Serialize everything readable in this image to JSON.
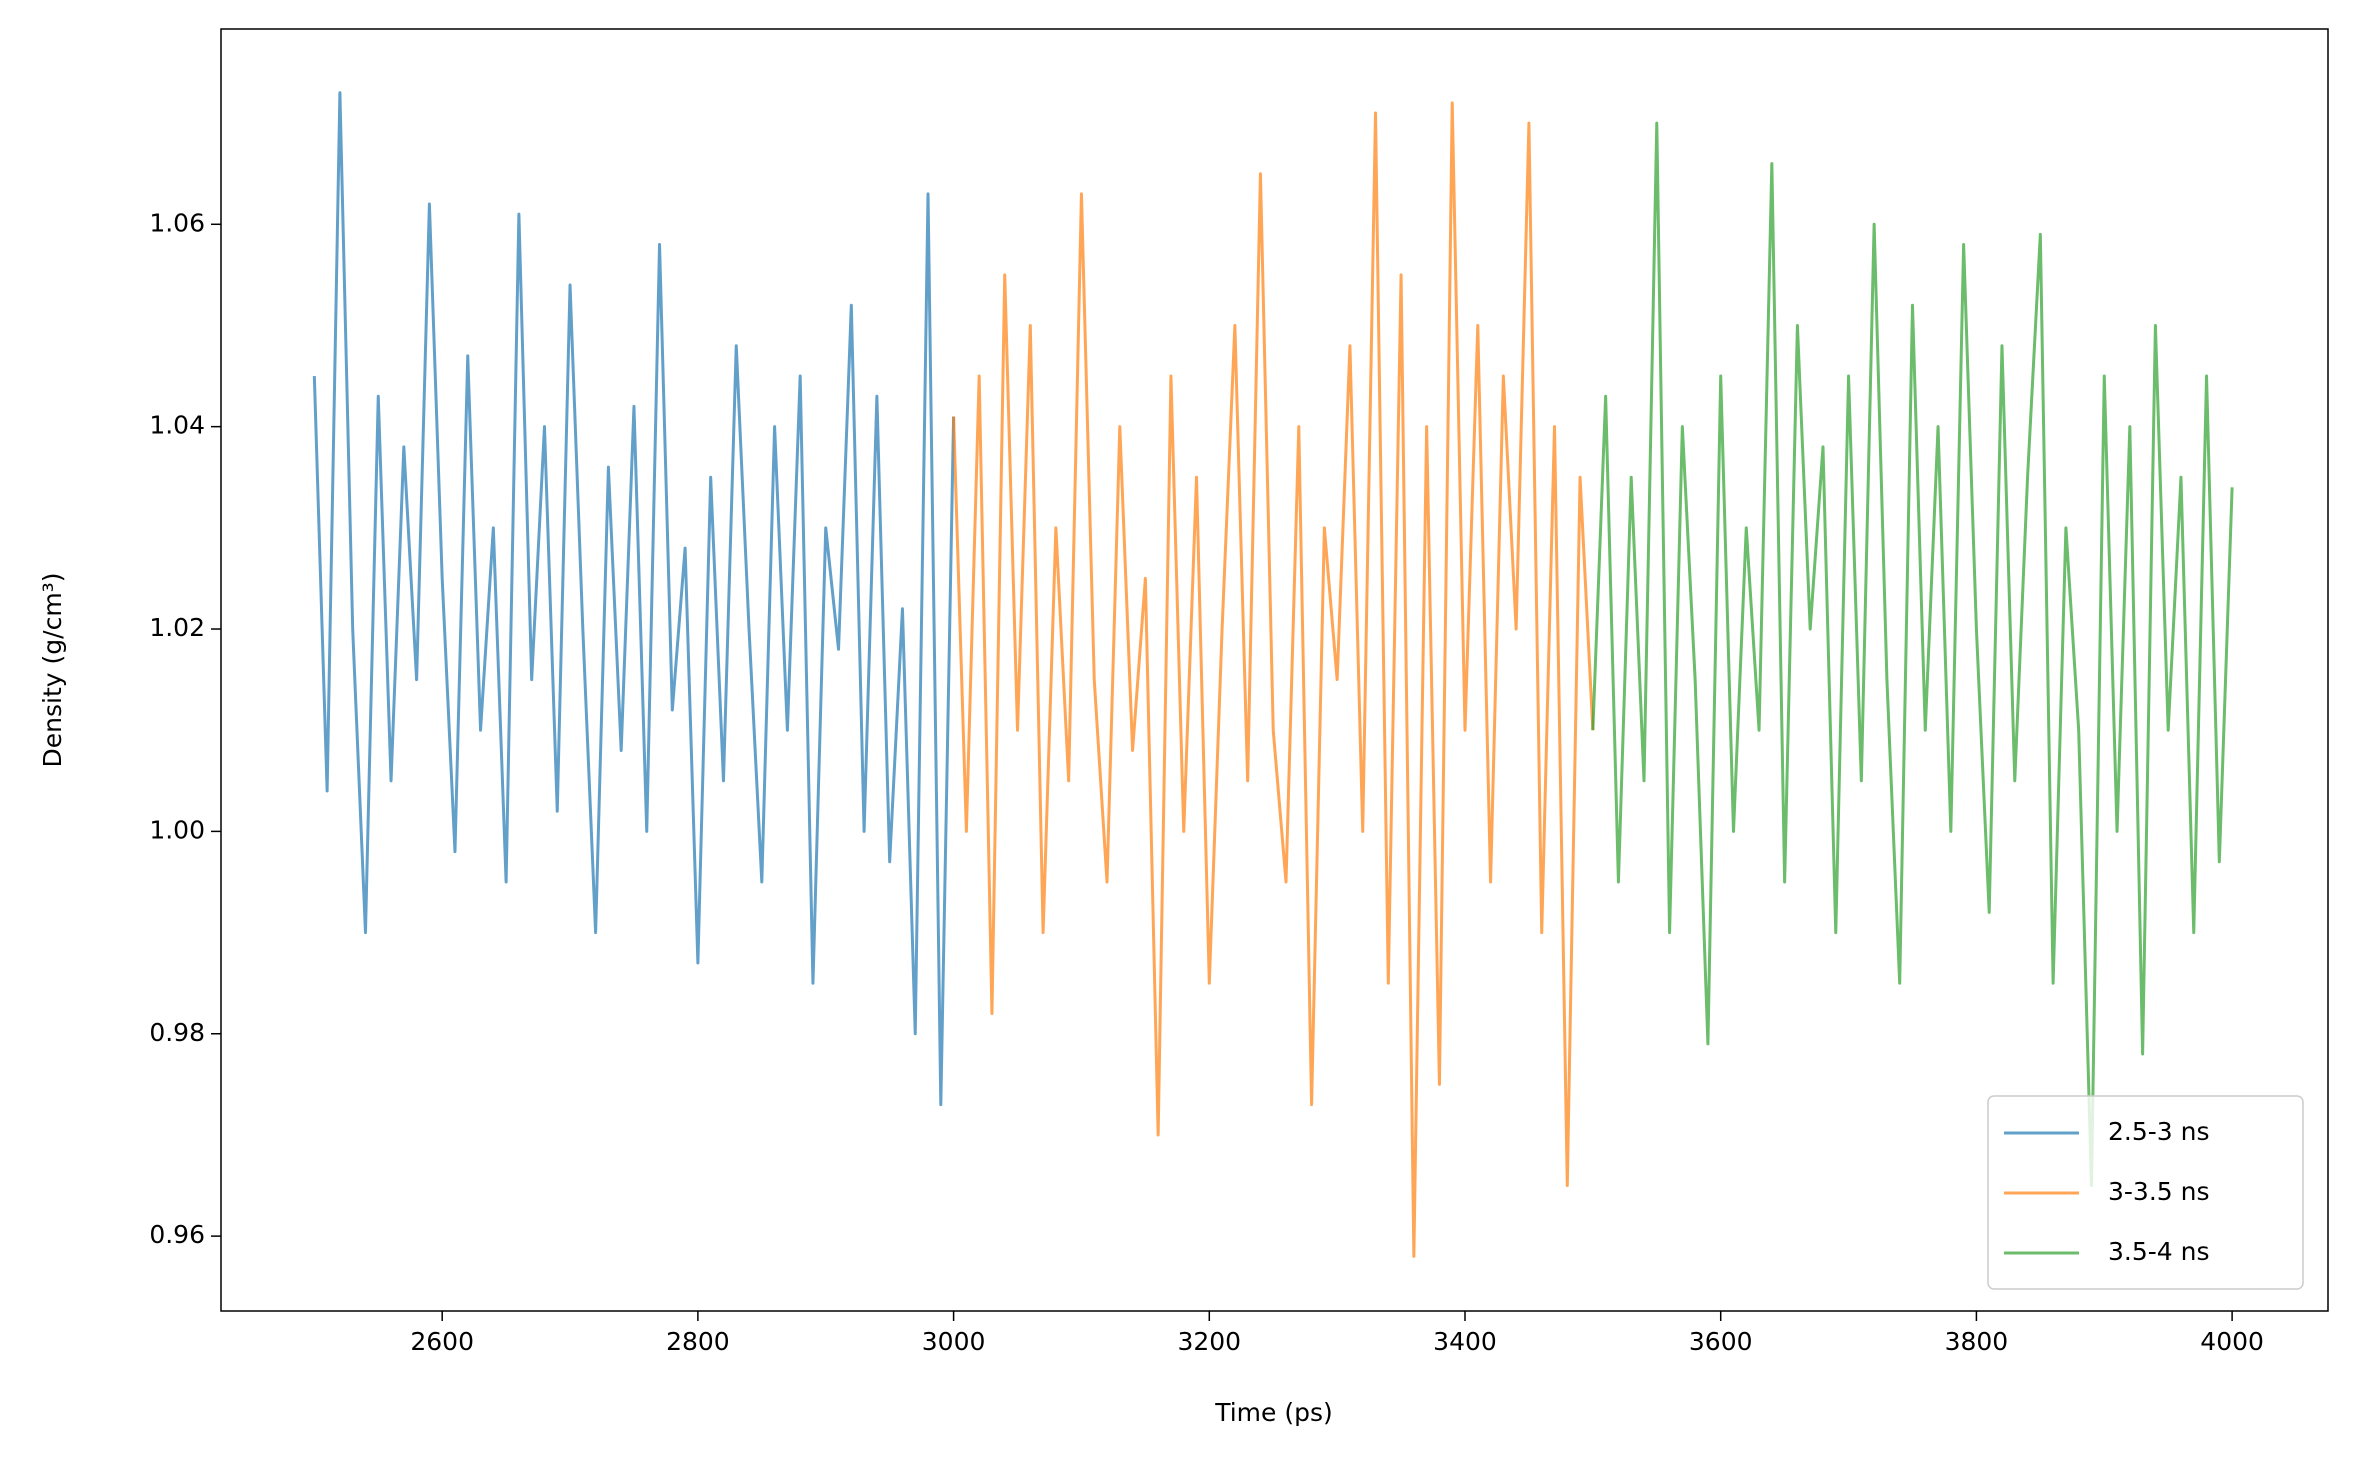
{
  "chart_data": {
    "type": "line",
    "x_label": "Time (ps)",
    "y_label": "Density (g/cm³)",
    "xlim": [
      2427,
      4075
    ],
    "ylim": [
      0.9526,
      1.0793
    ],
    "xticks": [
      2600,
      2800,
      3000,
      3200,
      3400,
      3600,
      3800,
      4000
    ],
    "yticks": [
      0.96,
      0.98,
      {
        "value": 1,
        "label": "1.00"
      },
      1.02,
      1.04,
      1.06
    ],
    "grid": false,
    "legend": "lower right",
    "alpha": 0.7,
    "series": [
      {
        "name": "2.5-3 ns",
        "color": "#1f77b4",
        "x": [
          2500,
          2510,
          2520,
          2530,
          2540,
          2550,
          2560,
          2570,
          2580,
          2590,
          2600,
          2610,
          2620,
          2630,
          2640,
          2650,
          2660,
          2670,
          2680,
          2690,
          2700,
          2710,
          2720,
          2730,
          2740,
          2750,
          2760,
          2770,
          2780,
          2790,
          2800,
          2810,
          2820,
          2830,
          2840,
          2850,
          2860,
          2870,
          2880,
          2890,
          2900,
          2910,
          2920,
          2930,
          2940,
          2950,
          2960,
          2970,
          2980,
          2990,
          3000
        ],
        "values": [
          1.045,
          1.004,
          1.073,
          1.02,
          0.99,
          1.043,
          1.005,
          1.038,
          1.015,
          1.062,
          1.025,
          0.998,
          1.047,
          1.01,
          1.03,
          0.995,
          1.061,
          1.015,
          1.04,
          1.002,
          1.054,
          1.02,
          0.99,
          1.036,
          1.008,
          1.042,
          1.0,
          1.058,
          1.012,
          1.028,
          0.987,
          1.035,
          1.005,
          1.048,
          1.02,
          0.995,
          1.04,
          1.01,
          1.045,
          0.985,
          1.03,
          1.018,
          1.052,
          1.0,
          1.043,
          0.997,
          1.022,
          0.98,
          1.063,
          0.973,
          1.041
        ]
      },
      {
        "name": "3-3.5 ns",
        "color": "#ff7f0e",
        "x": [
          3000,
          3010,
          3020,
          3030,
          3040,
          3050,
          3060,
          3070,
          3080,
          3090,
          3100,
          3110,
          3120,
          3130,
          3140,
          3150,
          3160,
          3170,
          3180,
          3190,
          3200,
          3210,
          3220,
          3230,
          3240,
          3250,
          3260,
          3270,
          3280,
          3290,
          3300,
          3310,
          3320,
          3330,
          3340,
          3350,
          3360,
          3370,
          3380,
          3390,
          3400,
          3410,
          3420,
          3430,
          3440,
          3450,
          3460,
          3470,
          3480,
          3490,
          3500
        ],
        "values": [
          1.041,
          1.0,
          1.045,
          0.982,
          1.055,
          1.01,
          1.05,
          0.99,
          1.03,
          1.005,
          1.063,
          1.015,
          0.995,
          1.04,
          1.008,
          1.025,
          0.97,
          1.045,
          1.0,
          1.035,
          0.985,
          1.02,
          1.05,
          1.005,
          1.065,
          1.01,
          0.995,
          1.04,
          0.973,
          1.03,
          1.015,
          1.048,
          1.0,
          1.071,
          0.985,
          1.055,
          0.958,
          1.04,
          0.975,
          1.072,
          1.01,
          1.05,
          0.995,
          1.045,
          1.02,
          1.07,
          0.99,
          1.04,
          0.965,
          1.035,
          1.01
        ]
      },
      {
        "name": "3.5-4 ns",
        "color": "#2ca02c",
        "x": [
          3500,
          3510,
          3520,
          3530,
          3540,
          3550,
          3560,
          3570,
          3580,
          3590,
          3600,
          3610,
          3620,
          3630,
          3640,
          3650,
          3660,
          3670,
          3680,
          3690,
          3700,
          3710,
          3720,
          3730,
          3740,
          3750,
          3760,
          3770,
          3780,
          3790,
          3800,
          3810,
          3820,
          3830,
          3840,
          3850,
          3860,
          3870,
          3880,
          3890,
          3900,
          3910,
          3920,
          3930,
          3940,
          3950,
          3960,
          3970,
          3980,
          3990,
          4000
        ],
        "values": [
          1.01,
          1.043,
          0.995,
          1.035,
          1.005,
          1.07,
          0.99,
          1.04,
          1.015,
          0.979,
          1.045,
          1.0,
          1.03,
          1.01,
          1.066,
          0.995,
          1.05,
          1.02,
          1.038,
          0.99,
          1.045,
          1.005,
          1.06,
          1.015,
          0.985,
          1.052,
          1.01,
          1.04,
          1.0,
          1.058,
          1.02,
          0.992,
          1.048,
          1.005,
          1.035,
          1.059,
          0.985,
          1.03,
          1.01,
          0.965,
          1.045,
          1.0,
          1.04,
          0.978,
          1.05,
          1.01,
          1.035,
          0.99,
          1.045,
          0.997,
          1.034
        ]
      }
    ]
  }
}
